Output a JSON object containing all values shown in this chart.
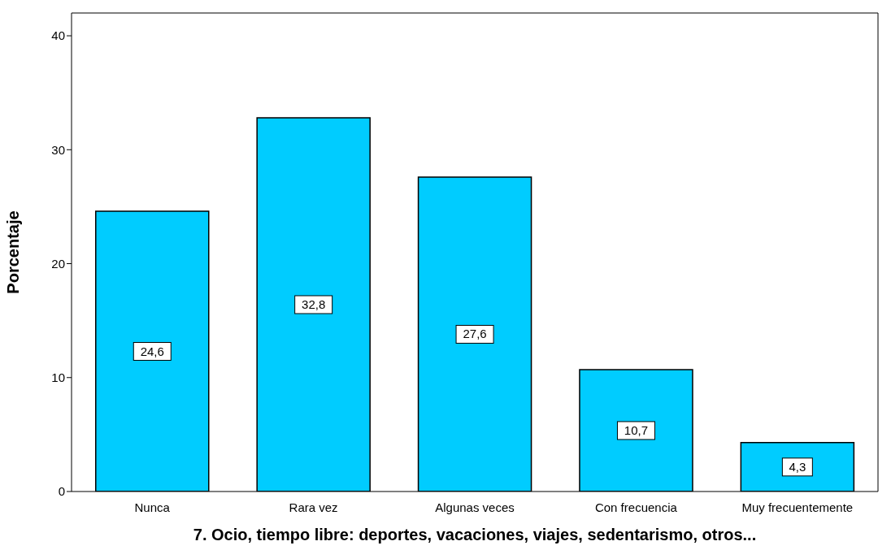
{
  "chart_data": {
    "type": "bar",
    "xlabel": "7. Ocio, tiempo libre: deportes, vacaciones, viajes, sedentarismo, otros...",
    "ylabel": "Porcentaje",
    "categories": [
      "Nunca",
      "Rara vez",
      "Algunas veces",
      "Con frecuencia",
      "Muy frecuentemente"
    ],
    "values": [
      24.6,
      32.8,
      27.6,
      10.7,
      4.3
    ],
    "value_labels": [
      "24,6",
      "32,8",
      "27,6",
      "10,7",
      "4,3"
    ],
    "color": "#00ccff",
    "ylim": [
      0,
      42
    ],
    "yticks": [
      0,
      10,
      20,
      30,
      40
    ],
    "grid": false
  }
}
